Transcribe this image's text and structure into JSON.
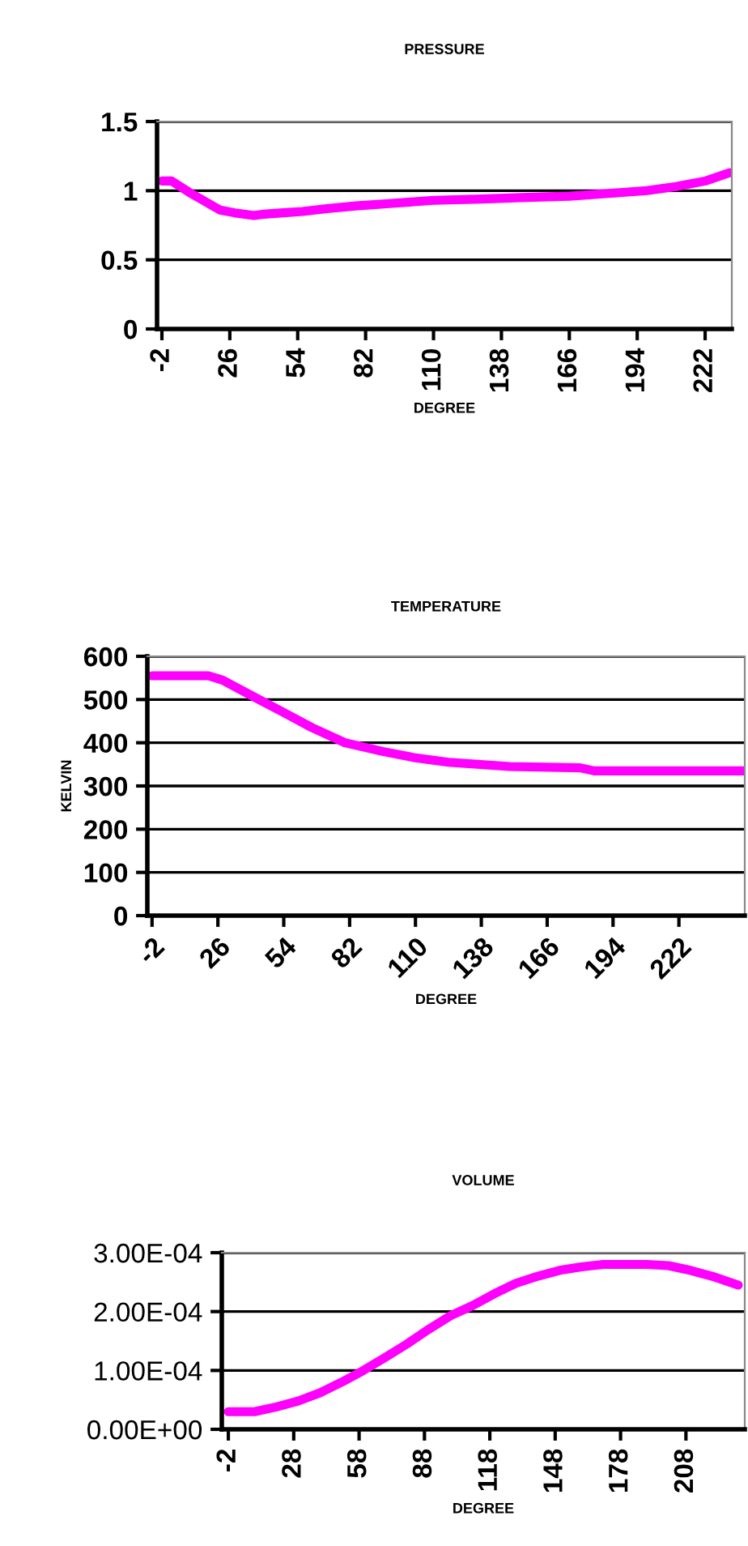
{
  "chart_data": [
    {
      "type": "line",
      "title": "PRESSURE",
      "xlabel": "DEGREE",
      "grid": "y",
      "marker": "none",
      "line_style": "solid",
      "legend": false,
      "xlim": [
        -4,
        233
      ],
      "xticks": [
        -2,
        26,
        54,
        82,
        110,
        138,
        166,
        194,
        222
      ],
      "ylim": [
        0,
        1.5
      ],
      "yticks": [
        0,
        0.5,
        1,
        1.5
      ],
      "series": [
        {
          "color": "#ff00ff",
          "x": [
            -2,
            2,
            10,
            16,
            22,
            28,
            36,
            40,
            48,
            56,
            66,
            78,
            94,
            110,
            130,
            146,
            166,
            182,
            198,
            210,
            222,
            232
          ],
          "values": [
            1.07,
            1.07,
            0.98,
            0.92,
            0.86,
            0.84,
            0.82,
            0.83,
            0.84,
            0.85,
            0.87,
            0.89,
            0.91,
            0.93,
            0.94,
            0.95,
            0.96,
            0.98,
            1.0,
            1.03,
            1.07,
            1.13
          ]
        }
      ]
    },
    {
      "type": "line",
      "title": "TEMPERATURE",
      "xlabel": "DEGREE",
      "ylabel": "KELVIN",
      "grid": "y",
      "marker": "none",
      "line_style": "solid",
      "legend": false,
      "xlim": [
        -4,
        250
      ],
      "xticks": [
        -2,
        26,
        54,
        82,
        110,
        138,
        166,
        194,
        222
      ],
      "ylim": [
        0,
        600
      ],
      "yticks": [
        0,
        100,
        200,
        300,
        400,
        500,
        600
      ],
      "series": [
        {
          "color": "#ff00ff",
          "x": [
            -2,
            22,
            28,
            40,
            54,
            66,
            80,
            96,
            110,
            124,
            150,
            180,
            186,
            250
          ],
          "values": [
            555,
            555,
            545,
            510,
            470,
            435,
            400,
            380,
            365,
            355,
            345,
            342,
            335,
            335
          ]
        }
      ]
    },
    {
      "type": "line",
      "title": "VOLUME",
      "xlabel": "DEGREE",
      "grid": "y",
      "marker": "none",
      "line_style": "solid",
      "legend": false,
      "xlim": [
        -5,
        235
      ],
      "xticks": [
        -2,
        28,
        58,
        88,
        118,
        148,
        178,
        208
      ],
      "ylim": [
        0,
        0.0003
      ],
      "yticks": [
        {
          "value": 0,
          "label": "0.00E+00"
        },
        {
          "value": 0.0001,
          "label": "1.00E-04"
        },
        {
          "value": 0.0002,
          "label": "2.00E-04"
        },
        {
          "value": 0.0003,
          "label": "3.00E-04"
        }
      ],
      "series": [
        {
          "color": "#ff00ff",
          "x": [
            -2,
            10,
            20,
            30,
            40,
            50,
            60,
            70,
            80,
            90,
            100,
            110,
            120,
            130,
            140,
            150,
            160,
            170,
            190,
            200,
            210,
            220,
            232
          ],
          "values": [
            3e-05,
            3e-05,
            3.8e-05,
            4.8e-05,
            6.2e-05,
            8e-05,
            0.0001,
            0.000122,
            0.000145,
            0.00017,
            0.000193,
            0.00021,
            0.00023,
            0.000248,
            0.00026,
            0.00027,
            0.000276,
            0.00028,
            0.00028,
            0.000278,
            0.00027,
            0.00026,
            0.000245
          ]
        }
      ]
    }
  ]
}
